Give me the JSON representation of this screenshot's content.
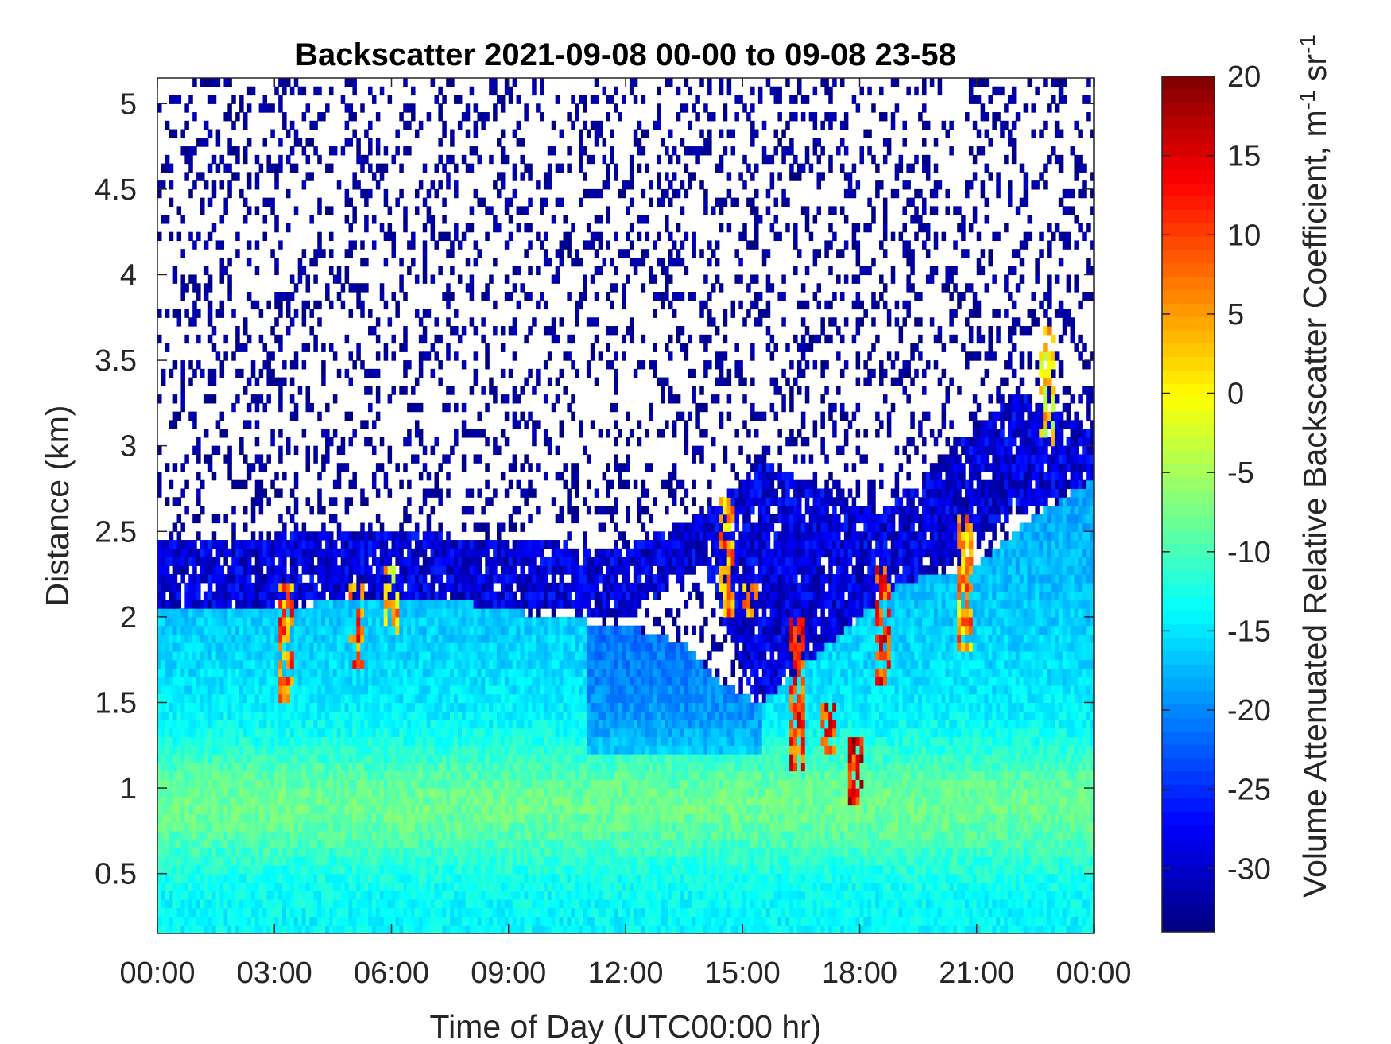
{
  "chart_data": {
    "type": "heatmap",
    "title": "Backscatter 2021-09-08 00-00 to 09-08 23-58",
    "xlabel": "Time of Day (UTC00:00 hr)",
    "ylabel": "Distance (km)",
    "colorbar_label": "Volume Attenuated Relative Backscatter Coefficient, m",
    "colorbar_label_sup1": "-1",
    "colorbar_label_mid": " sr",
    "colorbar_label_sup2": "-1",
    "xlim_hours": [
      0,
      24
    ],
    "ylim_km": [
      0.15,
      5.15
    ],
    "clim": [
      -34,
      20
    ],
    "colormap": "jet",
    "x_ticks": [
      {
        "value": 0,
        "label": "00:00"
      },
      {
        "value": 3,
        "label": "03:00"
      },
      {
        "value": 6,
        "label": "06:00"
      },
      {
        "value": 9,
        "label": "09:00"
      },
      {
        "value": 12,
        "label": "12:00"
      },
      {
        "value": 15,
        "label": "15:00"
      },
      {
        "value": 18,
        "label": "18:00"
      },
      {
        "value": 21,
        "label": "21:00"
      },
      {
        "value": 24,
        "label": "00:00"
      }
    ],
    "y_ticks": [
      {
        "value": 0.5,
        "label": "0.5"
      },
      {
        "value": 1,
        "label": "1"
      },
      {
        "value": 1.5,
        "label": "1.5"
      },
      {
        "value": 2,
        "label": "2"
      },
      {
        "value": 2.5,
        "label": "2.5"
      },
      {
        "value": 3,
        "label": "3"
      },
      {
        "value": 3.5,
        "label": "3.5"
      },
      {
        "value": 4,
        "label": "4"
      },
      {
        "value": 4.5,
        "label": "4.5"
      },
      {
        "value": 5,
        "label": "5"
      }
    ],
    "colorbar_ticks": [
      {
        "value": 20,
        "label": "20"
      },
      {
        "value": 15,
        "label": "15"
      },
      {
        "value": 10,
        "label": "10"
      },
      {
        "value": 5,
        "label": "5"
      },
      {
        "value": 0,
        "label": "0"
      },
      {
        "value": -5,
        "label": "-5"
      },
      {
        "value": -10,
        "label": "-10"
      },
      {
        "value": -15,
        "label": "-15"
      },
      {
        "value": -20,
        "label": "-20"
      },
      {
        "value": -25,
        "label": "-25"
      },
      {
        "value": -30,
        "label": "-30"
      }
    ],
    "boundary_layer_top_km": [
      [
        0,
        2.05
      ],
      [
        3,
        2.05
      ],
      [
        5,
        2.1
      ],
      [
        7.5,
        2.1
      ],
      [
        10,
        2.0
      ],
      [
        12,
        1.95
      ],
      [
        13.5,
        1.85
      ],
      [
        14.5,
        1.6
      ],
      [
        15.5,
        1.5
      ],
      [
        16.5,
        1.7
      ],
      [
        17.5,
        1.9
      ],
      [
        19,
        2.2
      ],
      [
        21,
        2.3
      ],
      [
        22.5,
        2.6
      ],
      [
        24,
        2.8
      ]
    ],
    "cloud_layer_km": [
      [
        0,
        2.05,
        2.45
      ],
      [
        6,
        2.1,
        2.5
      ],
      [
        12,
        2.0,
        2.4
      ],
      [
        14,
        2.3,
        2.6
      ],
      [
        15.5,
        1.4,
        2.9
      ],
      [
        18.5,
        1.9,
        2.6
      ],
      [
        19.5,
        2.2,
        2.8
      ],
      [
        22,
        2.6,
        3.3
      ],
      [
        24,
        2.8,
        3.1
      ]
    ],
    "high_backscatter_features": [
      {
        "time_h": 3.3,
        "alt_min_km": 1.5,
        "alt_max_km": 2.2,
        "peak_value": 15
      },
      {
        "time_h": 5.1,
        "alt_min_km": 1.7,
        "alt_max_km": 2.2,
        "peak_value": 15
      },
      {
        "time_h": 6.0,
        "alt_min_km": 1.9,
        "alt_max_km": 2.3,
        "peak_value": 10
      },
      {
        "time_h": 14.6,
        "alt_min_km": 2.0,
        "alt_max_km": 2.7,
        "peak_value": 12
      },
      {
        "time_h": 15.2,
        "alt_min_km": 2.0,
        "alt_max_km": 2.2,
        "peak_value": 10
      },
      {
        "time_h": 16.4,
        "alt_min_km": 1.1,
        "alt_max_km": 2.0,
        "peak_value": 18
      },
      {
        "time_h": 17.2,
        "alt_min_km": 1.2,
        "alt_max_km": 1.5,
        "peak_value": 18
      },
      {
        "time_h": 17.9,
        "alt_min_km": 0.9,
        "alt_max_km": 1.3,
        "peak_value": 20
      },
      {
        "time_h": 18.6,
        "alt_min_km": 1.6,
        "alt_max_km": 2.3,
        "peak_value": 18
      },
      {
        "time_h": 20.7,
        "alt_min_km": 1.8,
        "alt_max_km": 2.6,
        "peak_value": 12
      },
      {
        "time_h": 22.8,
        "alt_min_km": 3.0,
        "alt_max_km": 3.7,
        "peak_value": 8
      }
    ]
  }
}
